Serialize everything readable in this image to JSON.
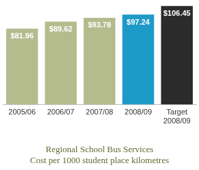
{
  "chart_data": {
    "type": "bar",
    "title": "Regional School Bus Services",
    "subtitle": "Cost per 1000 student place kilometres",
    "categories": [
      "2005/06",
      "2006/07",
      "2007/08",
      "2008/09",
      "Target 2008/09"
    ],
    "values": [
      81.96,
      89.62,
      93.78,
      97.24,
      106.45
    ],
    "value_labels": [
      "$81.96",
      "$89.62",
      "$93.78",
      "$97.24",
      "$106.45"
    ],
    "colors": [
      "#b4bc8e",
      "#b4bc8e",
      "#b4bc8e",
      "#1e9ac8",
      "#2b2b2b"
    ],
    "ylim": [
      0,
      110
    ],
    "grid": false,
    "data_labels": true,
    "tick_labels": "x"
  }
}
